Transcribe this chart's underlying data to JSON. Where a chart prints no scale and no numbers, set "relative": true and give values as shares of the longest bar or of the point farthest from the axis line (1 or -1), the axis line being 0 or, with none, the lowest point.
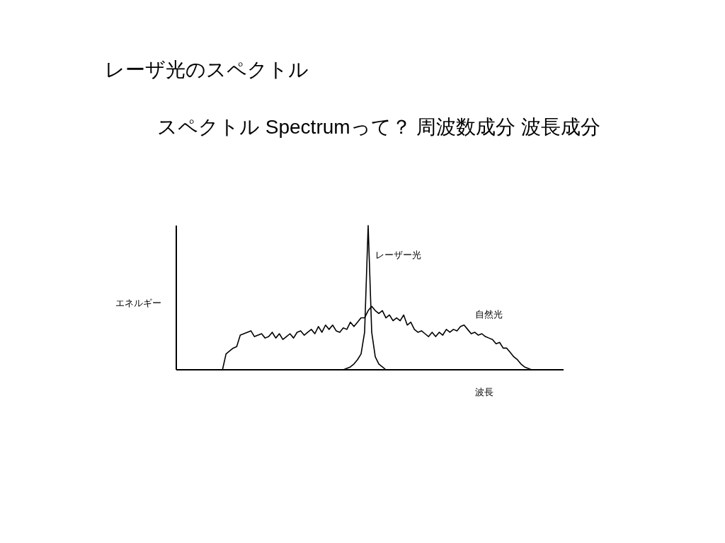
{
  "chart_data": {
    "type": "line",
    "title": "レーザ光のスペクトル",
    "subtitle": "スペクトル Spectrumって？  周波数成分  波長成分",
    "xlabel": "波長",
    "ylabel": "エネルギー",
    "relative": true,
    "marker": "none",
    "grid": false,
    "categories": [
      null,
      null,
      null,
      null,
      null,
      null,
      null,
      null,
      null,
      null,
      null,
      null,
      null,
      null,
      null,
      null,
      null,
      null,
      null,
      null,
      null,
      null,
      null,
      null,
      null,
      null,
      null,
      null,
      null,
      null,
      null,
      null,
      null,
      null,
      null,
      null,
      null,
      null,
      null,
      null,
      null,
      null,
      null,
      null,
      null,
      null,
      null,
      null,
      null,
      null,
      null,
      null,
      null,
      null,
      null,
      null,
      null,
      null,
      null,
      null,
      null,
      null,
      null,
      null,
      null,
      null,
      null,
      null,
      null,
      null,
      null,
      null,
      null,
      null,
      null,
      null,
      null,
      null,
      null,
      null,
      null,
      null,
      null,
      null,
      null,
      null,
      null,
      null,
      null,
      null,
      null,
      null,
      null,
      null,
      null,
      null,
      null,
      null,
      null,
      null,
      null,
      null,
      null,
      null,
      null,
      null,
      null,
      null,
      null,
      null
    ],
    "series": [
      {
        "name": "自然光",
        "color": "#000000",
        "values": [
          null,
          null,
          null,
          null,
          null,
          null,
          null,
          null,
          null,
          null,
          null,
          null,
          null,
          0,
          0.11,
          0.13,
          0.15,
          0.16,
          0.24,
          0.25,
          0.26,
          0.27,
          0.23,
          0.24,
          0.25,
          0.22,
          0.23,
          0.26,
          0.22,
          0.25,
          0.21,
          0.23,
          0.25,
          0.22,
          0.26,
          0.27,
          0.24,
          0.26,
          0.28,
          0.25,
          0.3,
          0.26,
          0.31,
          0.28,
          0.31,
          0.27,
          0.26,
          0.29,
          0.28,
          0.33,
          0.3,
          0.33,
          0.36,
          0.36,
          0.41,
          0.44,
          0.41,
          0.39,
          0.41,
          0.36,
          0.38,
          0.34,
          0.36,
          0.34,
          0.38,
          0.31,
          0.33,
          0.28,
          0.26,
          0.27,
          0.25,
          0.23,
          0.26,
          0.23,
          0.26,
          0.24,
          0.28,
          0.26,
          0.28,
          0.27,
          0.3,
          0.31,
          0.28,
          0.25,
          0.26,
          0.24,
          0.25,
          0.23,
          0.22,
          0.21,
          0.18,
          0.19,
          0.15,
          0.15,
          0.12,
          0.09,
          0.07,
          0.04,
          0.02,
          0.01,
          0,
          null,
          null,
          null,
          null,
          null,
          null,
          null,
          null,
          null
        ]
      },
      {
        "name": "レーザー光",
        "color": "#000000",
        "values": [
          null,
          null,
          null,
          null,
          null,
          null,
          null,
          null,
          null,
          null,
          null,
          null,
          null,
          null,
          null,
          null,
          null,
          null,
          null,
          null,
          null,
          null,
          null,
          null,
          null,
          null,
          null,
          null,
          null,
          null,
          null,
          null,
          null,
          null,
          null,
          null,
          null,
          null,
          null,
          null,
          null,
          null,
          null,
          null,
          null,
          null,
          null,
          0,
          0.01,
          0.02,
          0.04,
          0.07,
          0.11,
          0.26,
          1,
          0.26,
          0.09,
          0.04,
          0.02,
          0,
          null,
          null,
          null,
          null,
          null,
          null,
          null,
          null,
          null,
          null,
          null,
          null,
          null,
          null,
          null,
          null,
          null,
          null,
          null,
          null,
          null,
          null,
          null,
          null,
          null,
          null,
          null,
          null,
          null,
          null,
          null,
          null,
          null,
          null,
          null,
          null,
          null,
          null,
          null,
          null,
          null,
          null,
          null,
          null,
          null,
          null,
          null,
          null,
          null,
          null
        ]
      }
    ]
  }
}
